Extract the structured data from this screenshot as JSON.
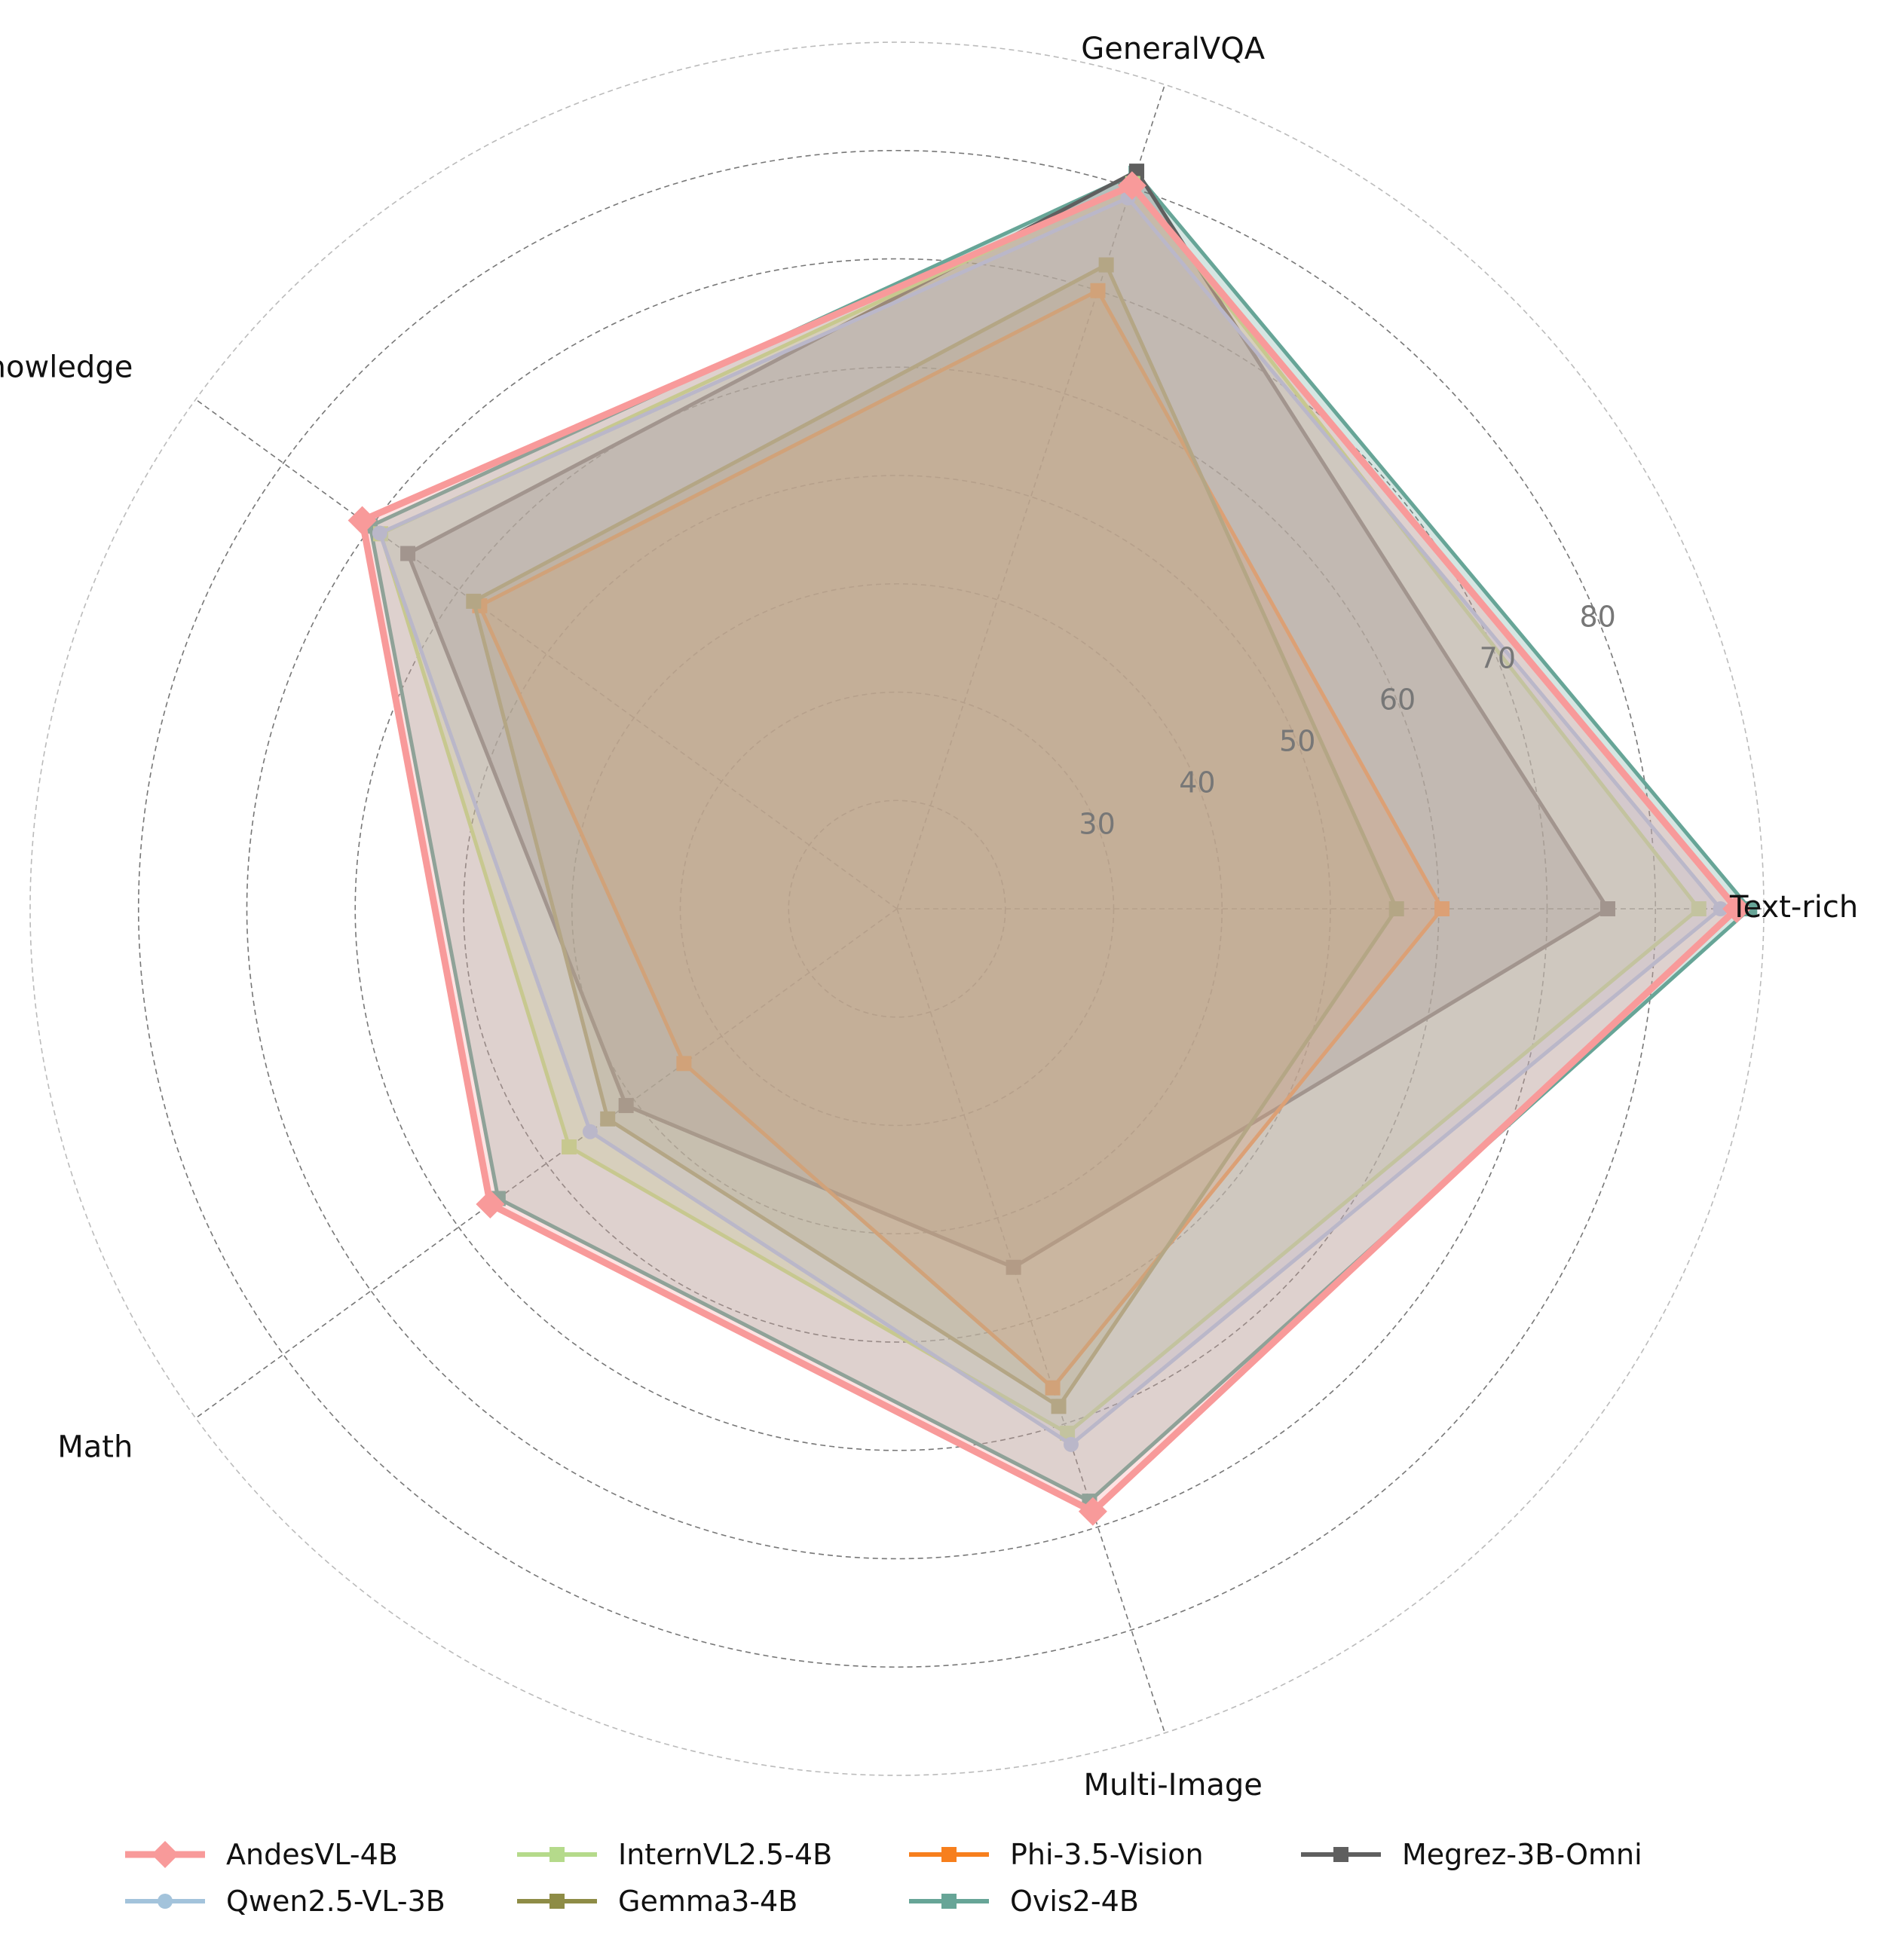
{
  "chart_data": {
    "type": "radar",
    "categories": [
      "Text-rich",
      "GeneralVQA",
      "Knowledge",
      "Math",
      "Multi-Image"
    ],
    "radial_ticks": [
      30,
      40,
      50,
      60,
      70,
      80
    ],
    "rlim": [
      10,
      90
    ],
    "grid": true,
    "legend_position": "bottom",
    "series": [
      {
        "name": "Ovis2-4B",
        "values": [
          88.7,
          81.4,
          70.1,
          55.5,
          67.5
        ],
        "color": "#67a597"
      },
      {
        "name": "Megrez-3B-Omni",
        "values": [
          75.6,
          81.6,
          65.8,
          40.9,
          44.8
        ],
        "color": "#5f5f5f"
      },
      {
        "name": "Phi-3.5-Vision",
        "values": [
          60.3,
          70.0,
          57.6,
          34.3,
          56.5
        ],
        "color": "#f77f1d"
      },
      {
        "name": "Gemma3-4B",
        "values": [
          56.1,
          72.5,
          58.3,
          43.0,
          58.3
        ],
        "color": "#8e8c46"
      },
      {
        "name": "InternVL2.5-4B",
        "values": [
          84.0,
          80.4,
          68.9,
          47.4,
          60.9
        ],
        "color": "#b5da8b"
      },
      {
        "name": "Qwen2.5-VL-3B",
        "values": [
          86.0,
          79.0,
          69.0,
          45.0,
          62.0
        ],
        "color": "#a3c3db"
      },
      {
        "name": "AndesVL-4B",
        "values": [
          87.5,
          80.2,
          71.0,
          56.4,
          68.5
        ],
        "color": "#f89a9a"
      }
    ],
    "legend_order": [
      "AndesVL-4B",
      "Qwen2.5-VL-3B",
      "InternVL2.5-4B",
      "Gemma3-4B",
      "Phi-3.5-Vision",
      "Ovis2-4B",
      "Megrez-3B-Omni"
    ]
  }
}
